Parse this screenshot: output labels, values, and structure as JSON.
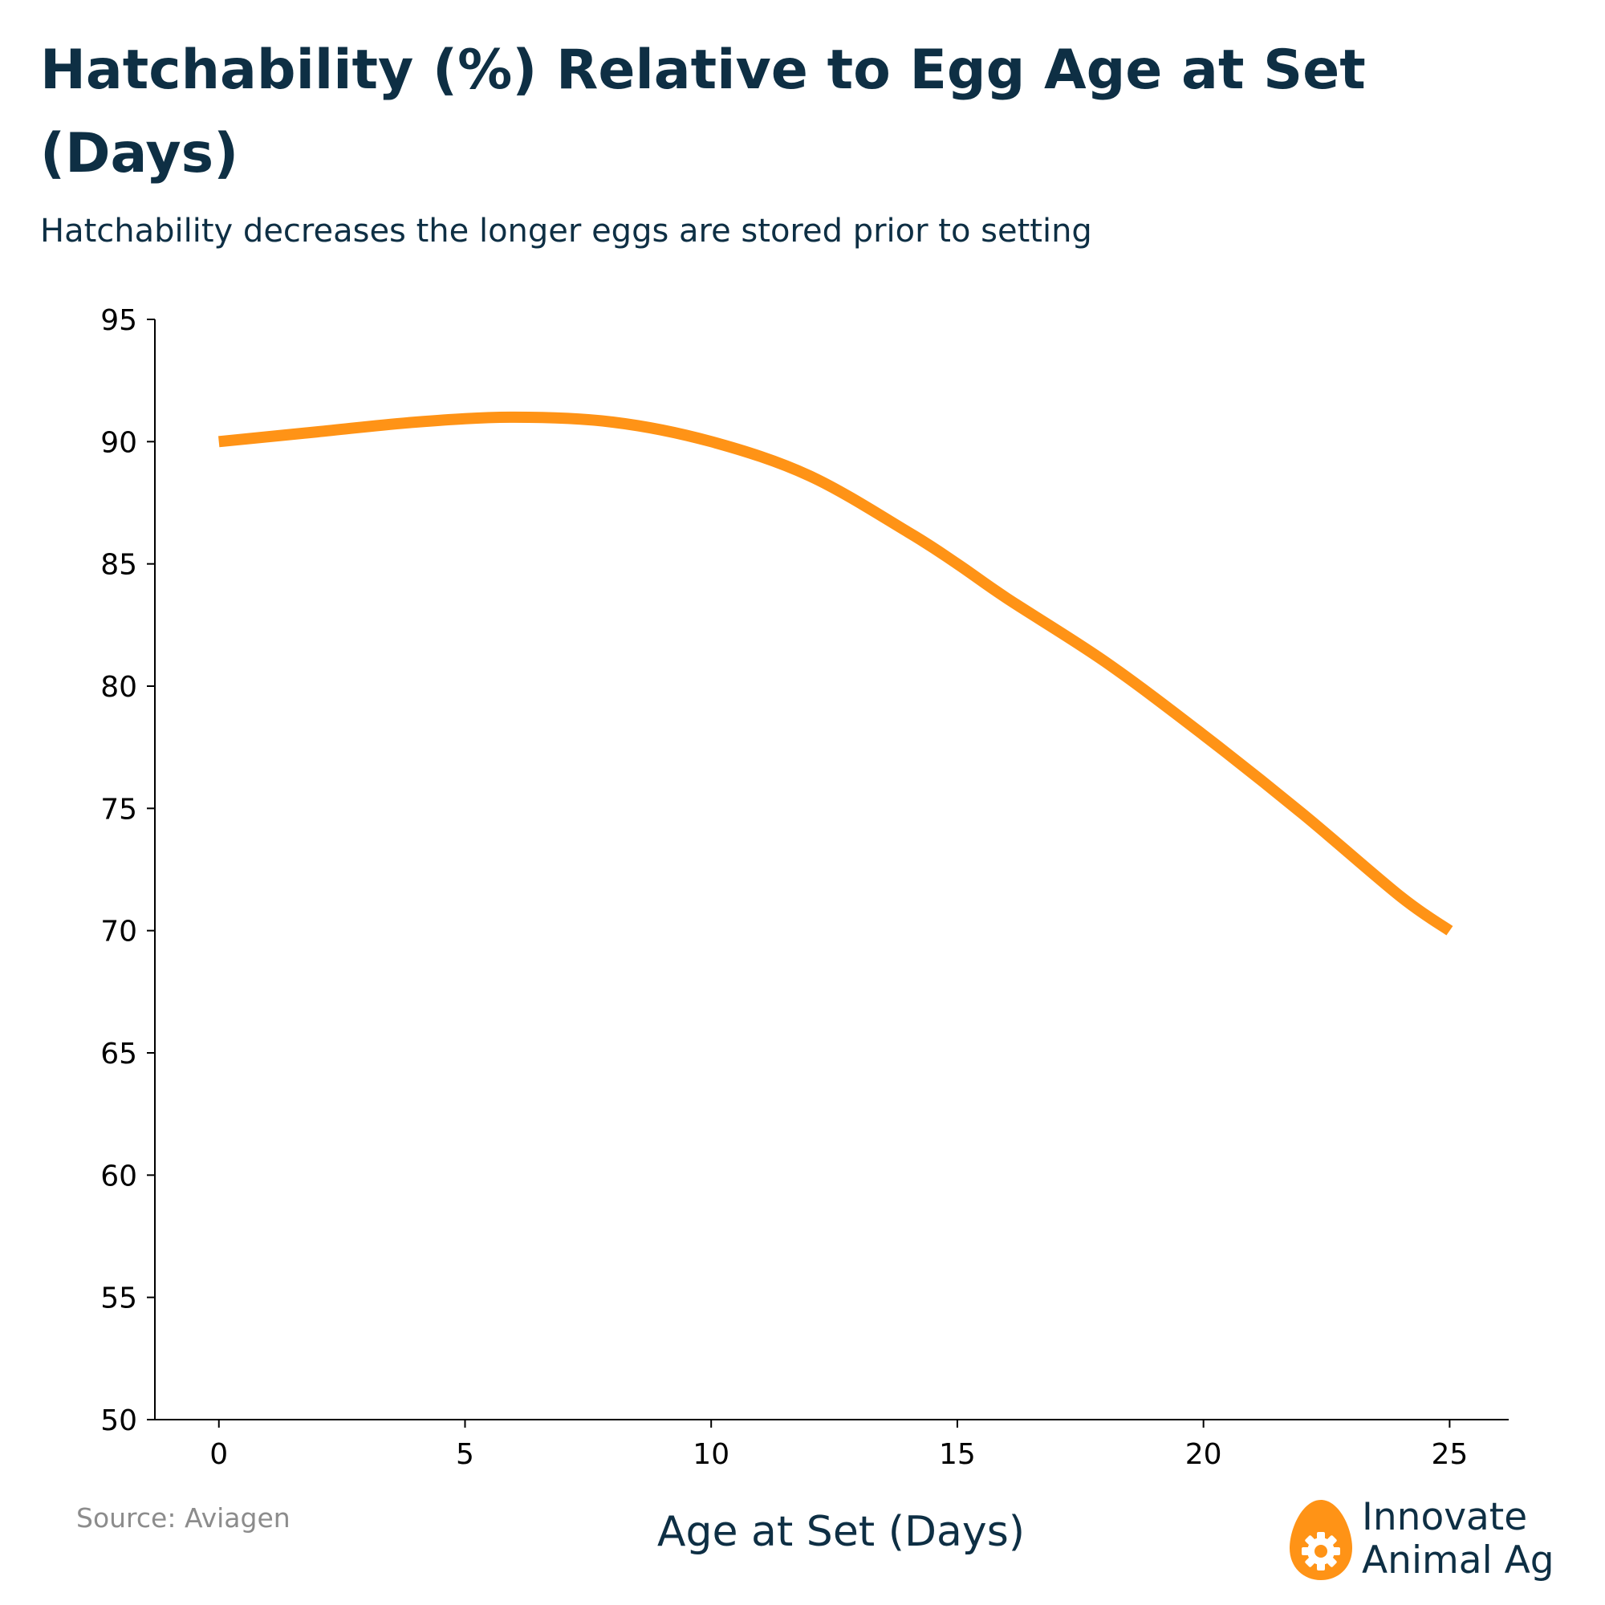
{
  "title": "Hatchability (%) Relative to Egg Age at Set (Days)",
  "subtitle": "Hatchability decreases the longer eggs are stored prior to setting",
  "source": "Source: Aviagen",
  "logo": {
    "line1": "Innovate",
    "line2": "Animal Ag",
    "icon": "egg-gear-icon"
  },
  "colors": {
    "text": "#0e2f44",
    "line": "#ff9316",
    "axis": "#000000",
    "source": "#8c8c8c"
  },
  "chart_data": {
    "type": "line",
    "title": "Hatchability (%) Relative to Egg Age at Set (Days)",
    "xlabel": "Age at Set (Days)",
    "ylabel": "",
    "xlim": [
      -1.3,
      26.2
    ],
    "ylim": [
      50,
      95
    ],
    "x_ticks": [
      0,
      5,
      10,
      15,
      20,
      25
    ],
    "y_ticks": [
      50,
      55,
      60,
      65,
      70,
      75,
      80,
      85,
      90,
      95
    ],
    "grid": false,
    "legend": "none",
    "series": [
      {
        "x": [
          0,
          2,
          4,
          6,
          8,
          10,
          12,
          14,
          15,
          16,
          18,
          20,
          22,
          24,
          25
        ],
        "values": [
          90,
          90.4,
          90.8,
          91,
          90.8,
          90,
          88.6,
          86.3,
          85,
          83.6,
          81,
          78,
          74.8,
          71.4,
          70
        ]
      }
    ]
  }
}
